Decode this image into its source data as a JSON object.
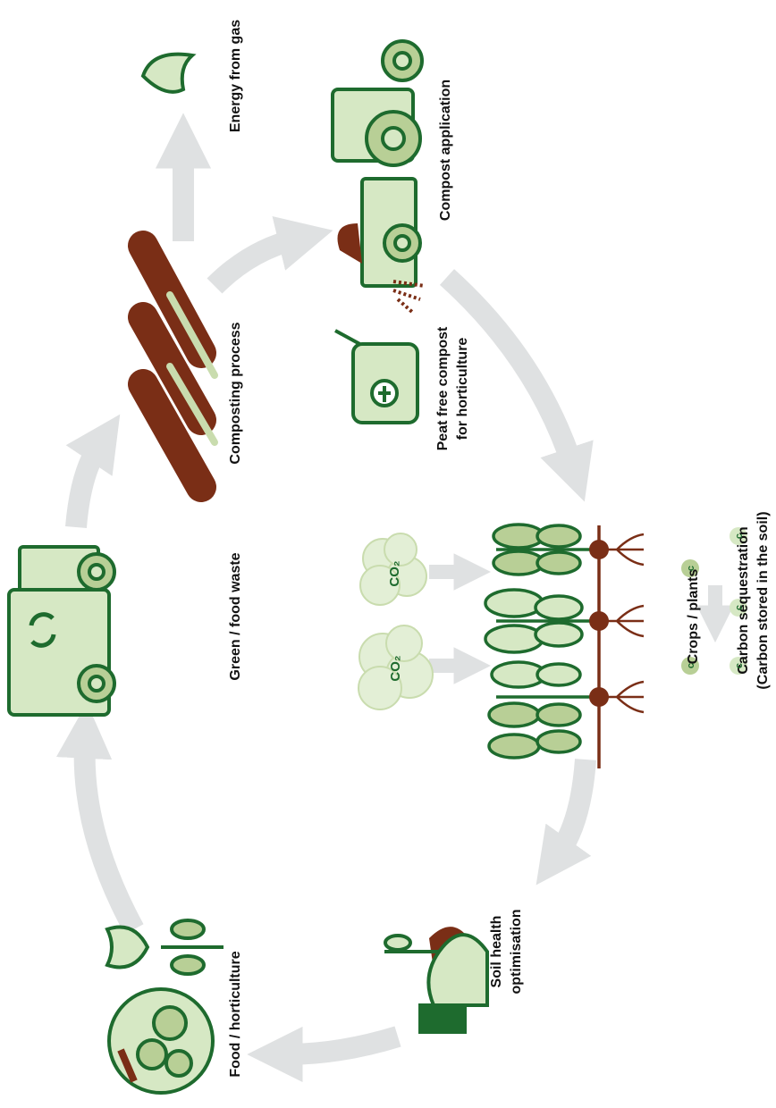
{
  "nodes": [
    {
      "label": [
        "Energy from gas"
      ]
    },
    {
      "label": [
        "Compost application"
      ]
    },
    {
      "label": [
        "Composting process"
      ]
    },
    {
      "label": [
        "Peat free compost",
        "for horticulture"
      ]
    },
    {
      "label": [
        "Green / food waste"
      ]
    },
    {
      "label": [
        "Crops / plants"
      ]
    },
    {
      "label": [
        "Carbon sequestration",
        "(Carbon stored in the soil)"
      ]
    },
    {
      "label": [
        "Soil health",
        "optimisation"
      ]
    },
    {
      "label": [
        "Food / horticulture"
      ]
    }
  ],
  "co2_labels": [
    "CO₂",
    "CO₂"
  ],
  "carbon_marks": [
    "c",
    "c",
    "c",
    "c",
    "c"
  ]
}
